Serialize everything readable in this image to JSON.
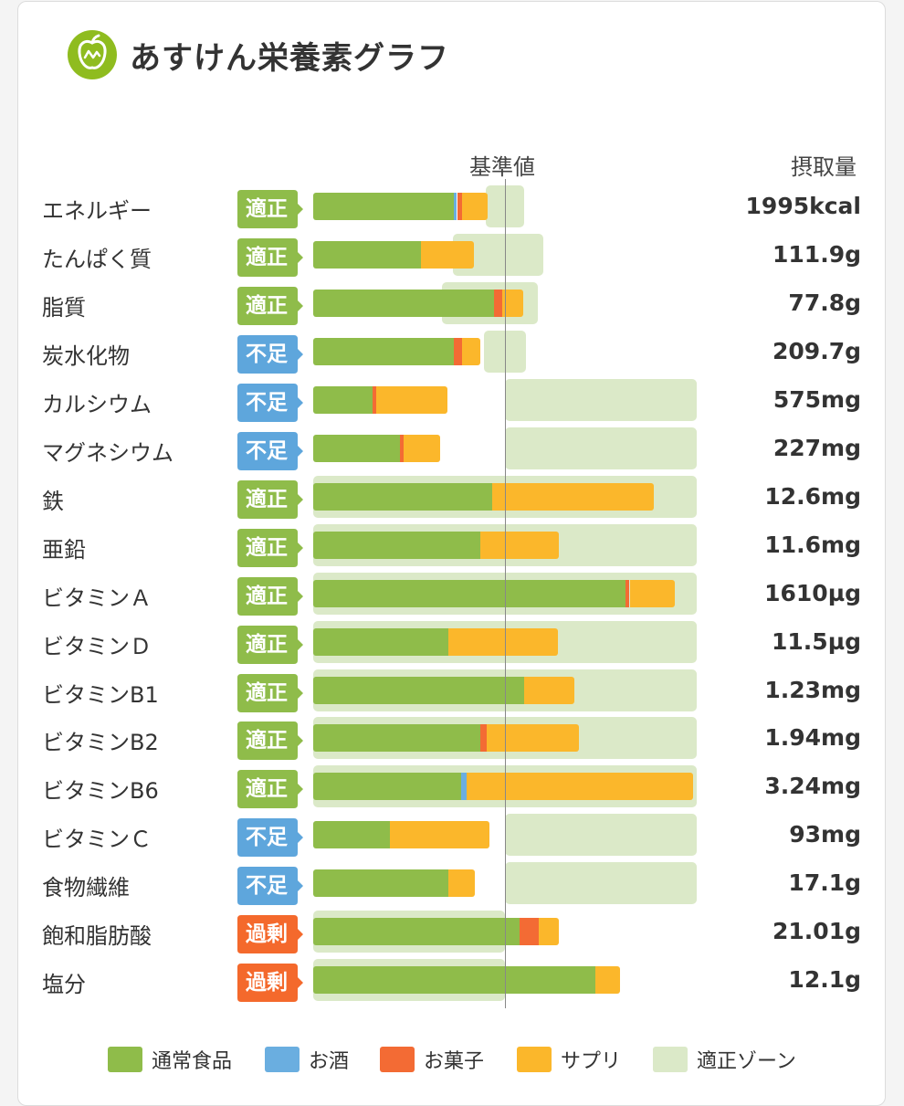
{
  "header": {
    "title": "あすけん栄養素グラフ",
    "logo_icon": "apple-scale-icon"
  },
  "chart_data": {
    "type": "bar",
    "stacked": true,
    "orientation": "horizontal",
    "reference_label": "基準値",
    "value_column_label": "摂取量",
    "segment_order": [
      "通常食品",
      "お酒",
      "お菓子",
      "サプリ"
    ],
    "legend": [
      {
        "name": "通常食品",
        "color": "#8fbc4a"
      },
      {
        "name": "お酒",
        "color": "#6aaee0"
      },
      {
        "name": "お菓子",
        "color": "#f36b34"
      },
      {
        "name": "サプリ",
        "color": "#fbb72b"
      },
      {
        "name": "適正ゾーン",
        "color": "#dbe9c8"
      }
    ],
    "status_colors": {
      "適正": "#8fbc4a",
      "不足": "#5ea6dc",
      "過剰": "#f4692c"
    },
    "unit_note": "segment and zone values are percent of 基準値 (reference line = 100)",
    "rows": [
      {
        "name": "エネルギー",
        "status": "適正",
        "amount": "1995kcal",
        "segments": [
          73.5,
          1.5,
          2.5,
          13.5
        ],
        "zone": [
          90,
          110
        ]
      },
      {
        "name": "たんぱく質",
        "status": "適正",
        "amount": "111.9g",
        "segments": [
          56,
          0,
          0,
          28
        ],
        "zone": [
          73,
          120
        ]
      },
      {
        "name": "脂質",
        "status": "適正",
        "amount": "77.8g",
        "segments": [
          94.5,
          0,
          4,
          11
        ],
        "zone": [
          67,
          117
        ]
      },
      {
        "name": "炭水化物",
        "status": "不足",
        "amount": "209.7g",
        "segments": [
          73.5,
          0,
          4,
          9.5
        ],
        "zone": [
          89,
          111
        ]
      },
      {
        "name": "カルシウム",
        "status": "不足",
        "amount": "575mg",
        "segments": [
          31,
          0,
          2,
          37
        ],
        "zone": [
          100,
          200
        ]
      },
      {
        "name": "マグネシウム",
        "status": "不足",
        "amount": "227mg",
        "segments": [
          45,
          0,
          2,
          19
        ],
        "zone": [
          100,
          200
        ]
      },
      {
        "name": "鉄",
        "status": "適正",
        "amount": "12.6mg",
        "segments": [
          93.5,
          0,
          0,
          84
        ],
        "zone": [
          0,
          200
        ]
      },
      {
        "name": "亜鉛",
        "status": "適正",
        "amount": "11.6mg",
        "segments": [
          87,
          0,
          0,
          41
        ],
        "zone": [
          0,
          200
        ]
      },
      {
        "name": "ビタミンＡ",
        "status": "適正",
        "amount": "1610µg",
        "segments": [
          163,
          0,
          2,
          23.5
        ],
        "zone": [
          0,
          200
        ]
      },
      {
        "name": "ビタミンＤ",
        "status": "適正",
        "amount": "11.5µg",
        "segments": [
          70.5,
          0,
          0,
          57
        ],
        "zone": [
          0,
          200
        ]
      },
      {
        "name": "ビタミンB1",
        "status": "適正",
        "amount": "1.23mg",
        "segments": [
          110,
          0,
          0,
          26
        ],
        "zone": [
          0,
          200
        ]
      },
      {
        "name": "ビタミンB2",
        "status": "適正",
        "amount": "1.94mg",
        "segments": [
          87,
          0,
          3.5,
          48
        ],
        "zone": [
          0,
          200
        ]
      },
      {
        "name": "ビタミンB6",
        "status": "適正",
        "amount": "3.24mg",
        "segments": [
          77,
          3,
          0,
          118
        ],
        "zone": [
          0,
          200
        ]
      },
      {
        "name": "ビタミンＣ",
        "status": "不足",
        "amount": "93mg",
        "segments": [
          40,
          0,
          0,
          52
        ],
        "zone": [
          100,
          200
        ]
      },
      {
        "name": "食物繊維",
        "status": "不足",
        "amount": "17.1g",
        "segments": [
          70.5,
          0,
          0,
          14
        ],
        "zone": [
          100,
          200
        ]
      },
      {
        "name": "飽和脂肪酸",
        "status": "過剰",
        "amount": "21.01g",
        "segments": [
          107.5,
          0,
          10,
          10.5
        ],
        "zone": [
          0,
          100
        ]
      },
      {
        "name": "塩分",
        "status": "過剰",
        "amount": "12.1g",
        "segments": [
          147,
          0,
          0,
          13
        ],
        "zone": [
          0,
          100
        ]
      }
    ]
  }
}
